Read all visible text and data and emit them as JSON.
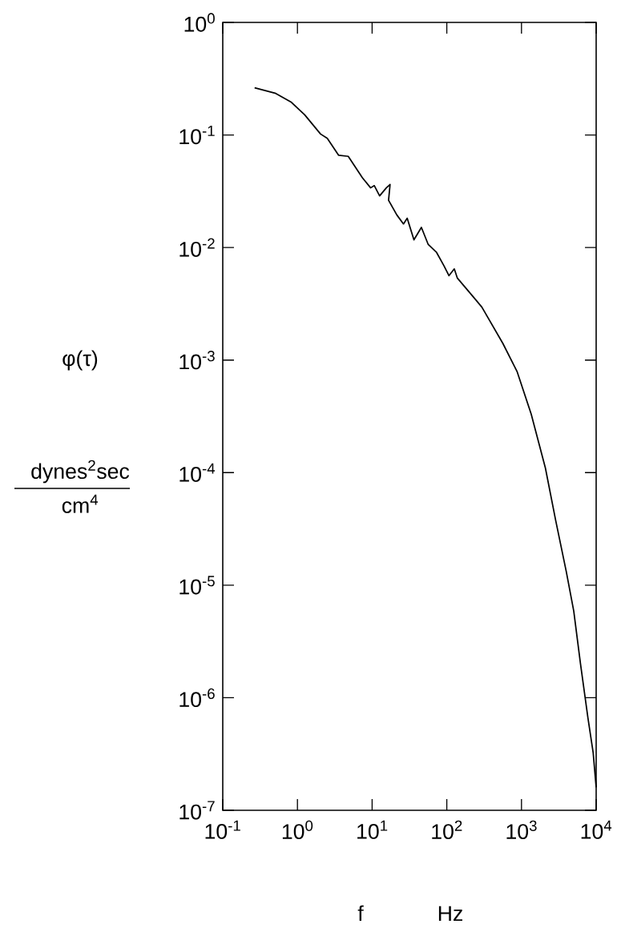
{
  "chart_data": {
    "type": "line",
    "xlabel": "f",
    "ylabel": "φ(τ)",
    "annotations": [
      "dynes$^{2}$sec",
      "cm$^{4}$",
      "Hz"
    ],
    "log": "xy",
    "grid": false,
    "marker": "none",
    "line_style": "solid",
    "xlim": [
      0.1,
      10000
    ],
    "ylim": [
      1e-07,
      1
    ],
    "xticks": [
      {
        "value": 0.1,
        "label": "10$^{-1}$"
      },
      {
        "value": 1,
        "label": "10$^{0}$"
      },
      {
        "value": 10,
        "label": "10$^{1}$"
      },
      {
        "value": 100,
        "label": "10$^{2}$"
      },
      {
        "value": 1000,
        "label": "10$^{3}$"
      },
      {
        "value": 10000,
        "label": "10$^{4}$"
      }
    ],
    "yticks": [
      {
        "value": 1e-07,
        "label": "10$^{-7}$"
      },
      {
        "value": 1e-06,
        "label": "10$^{-6}$"
      },
      {
        "value": 1e-05,
        "label": "10$^{-5}$"
      },
      {
        "value": 0.0001,
        "label": "10$^{-4}$"
      },
      {
        "value": 0.001,
        "label": "10$^{-3}$"
      },
      {
        "value": 0.01,
        "label": "10$^{-2}$"
      },
      {
        "value": 0.1,
        "label": "10$^{-1}$"
      },
      {
        "value": 1,
        "label": "10$^{0}$"
      }
    ],
    "series": [
      {
        "color": "#000000",
        "x": [
          0.267,
          0.513,
          0.832,
          1.25,
          2.04,
          2.51,
          3.55,
          4.79,
          7.41,
          9.55,
          10.7,
          12.6,
          15.5,
          17.4,
          16.6,
          21.4,
          26.3,
          29.5,
          36.3,
          45.7,
          56.2,
          72.4,
          91.2,
          107,
          126,
          138,
          234,
          295,
          562,
          871,
          1350,
          2090,
          2880,
          3980,
          5010,
          6170,
          7760,
          9120,
          10000
        ],
        "values": [
          0.263,
          0.234,
          0.195,
          0.151,
          0.102,
          0.0933,
          0.0661,
          0.0646,
          0.0417,
          0.0339,
          0.0355,
          0.0288,
          0.0339,
          0.0363,
          0.0263,
          0.0195,
          0.0162,
          0.0182,
          0.0117,
          0.0151,
          0.0107,
          0.00912,
          0.00692,
          0.00562,
          0.00646,
          0.00537,
          0.00355,
          0.00295,
          0.00141,
          0.000794,
          0.000331,
          0.00011,
          3.72e-05,
          1.32e-05,
          5.89e-06,
          2e-06,
          6.61e-07,
          3.24e-07,
          1.6e-07
        ]
      }
    ]
  }
}
